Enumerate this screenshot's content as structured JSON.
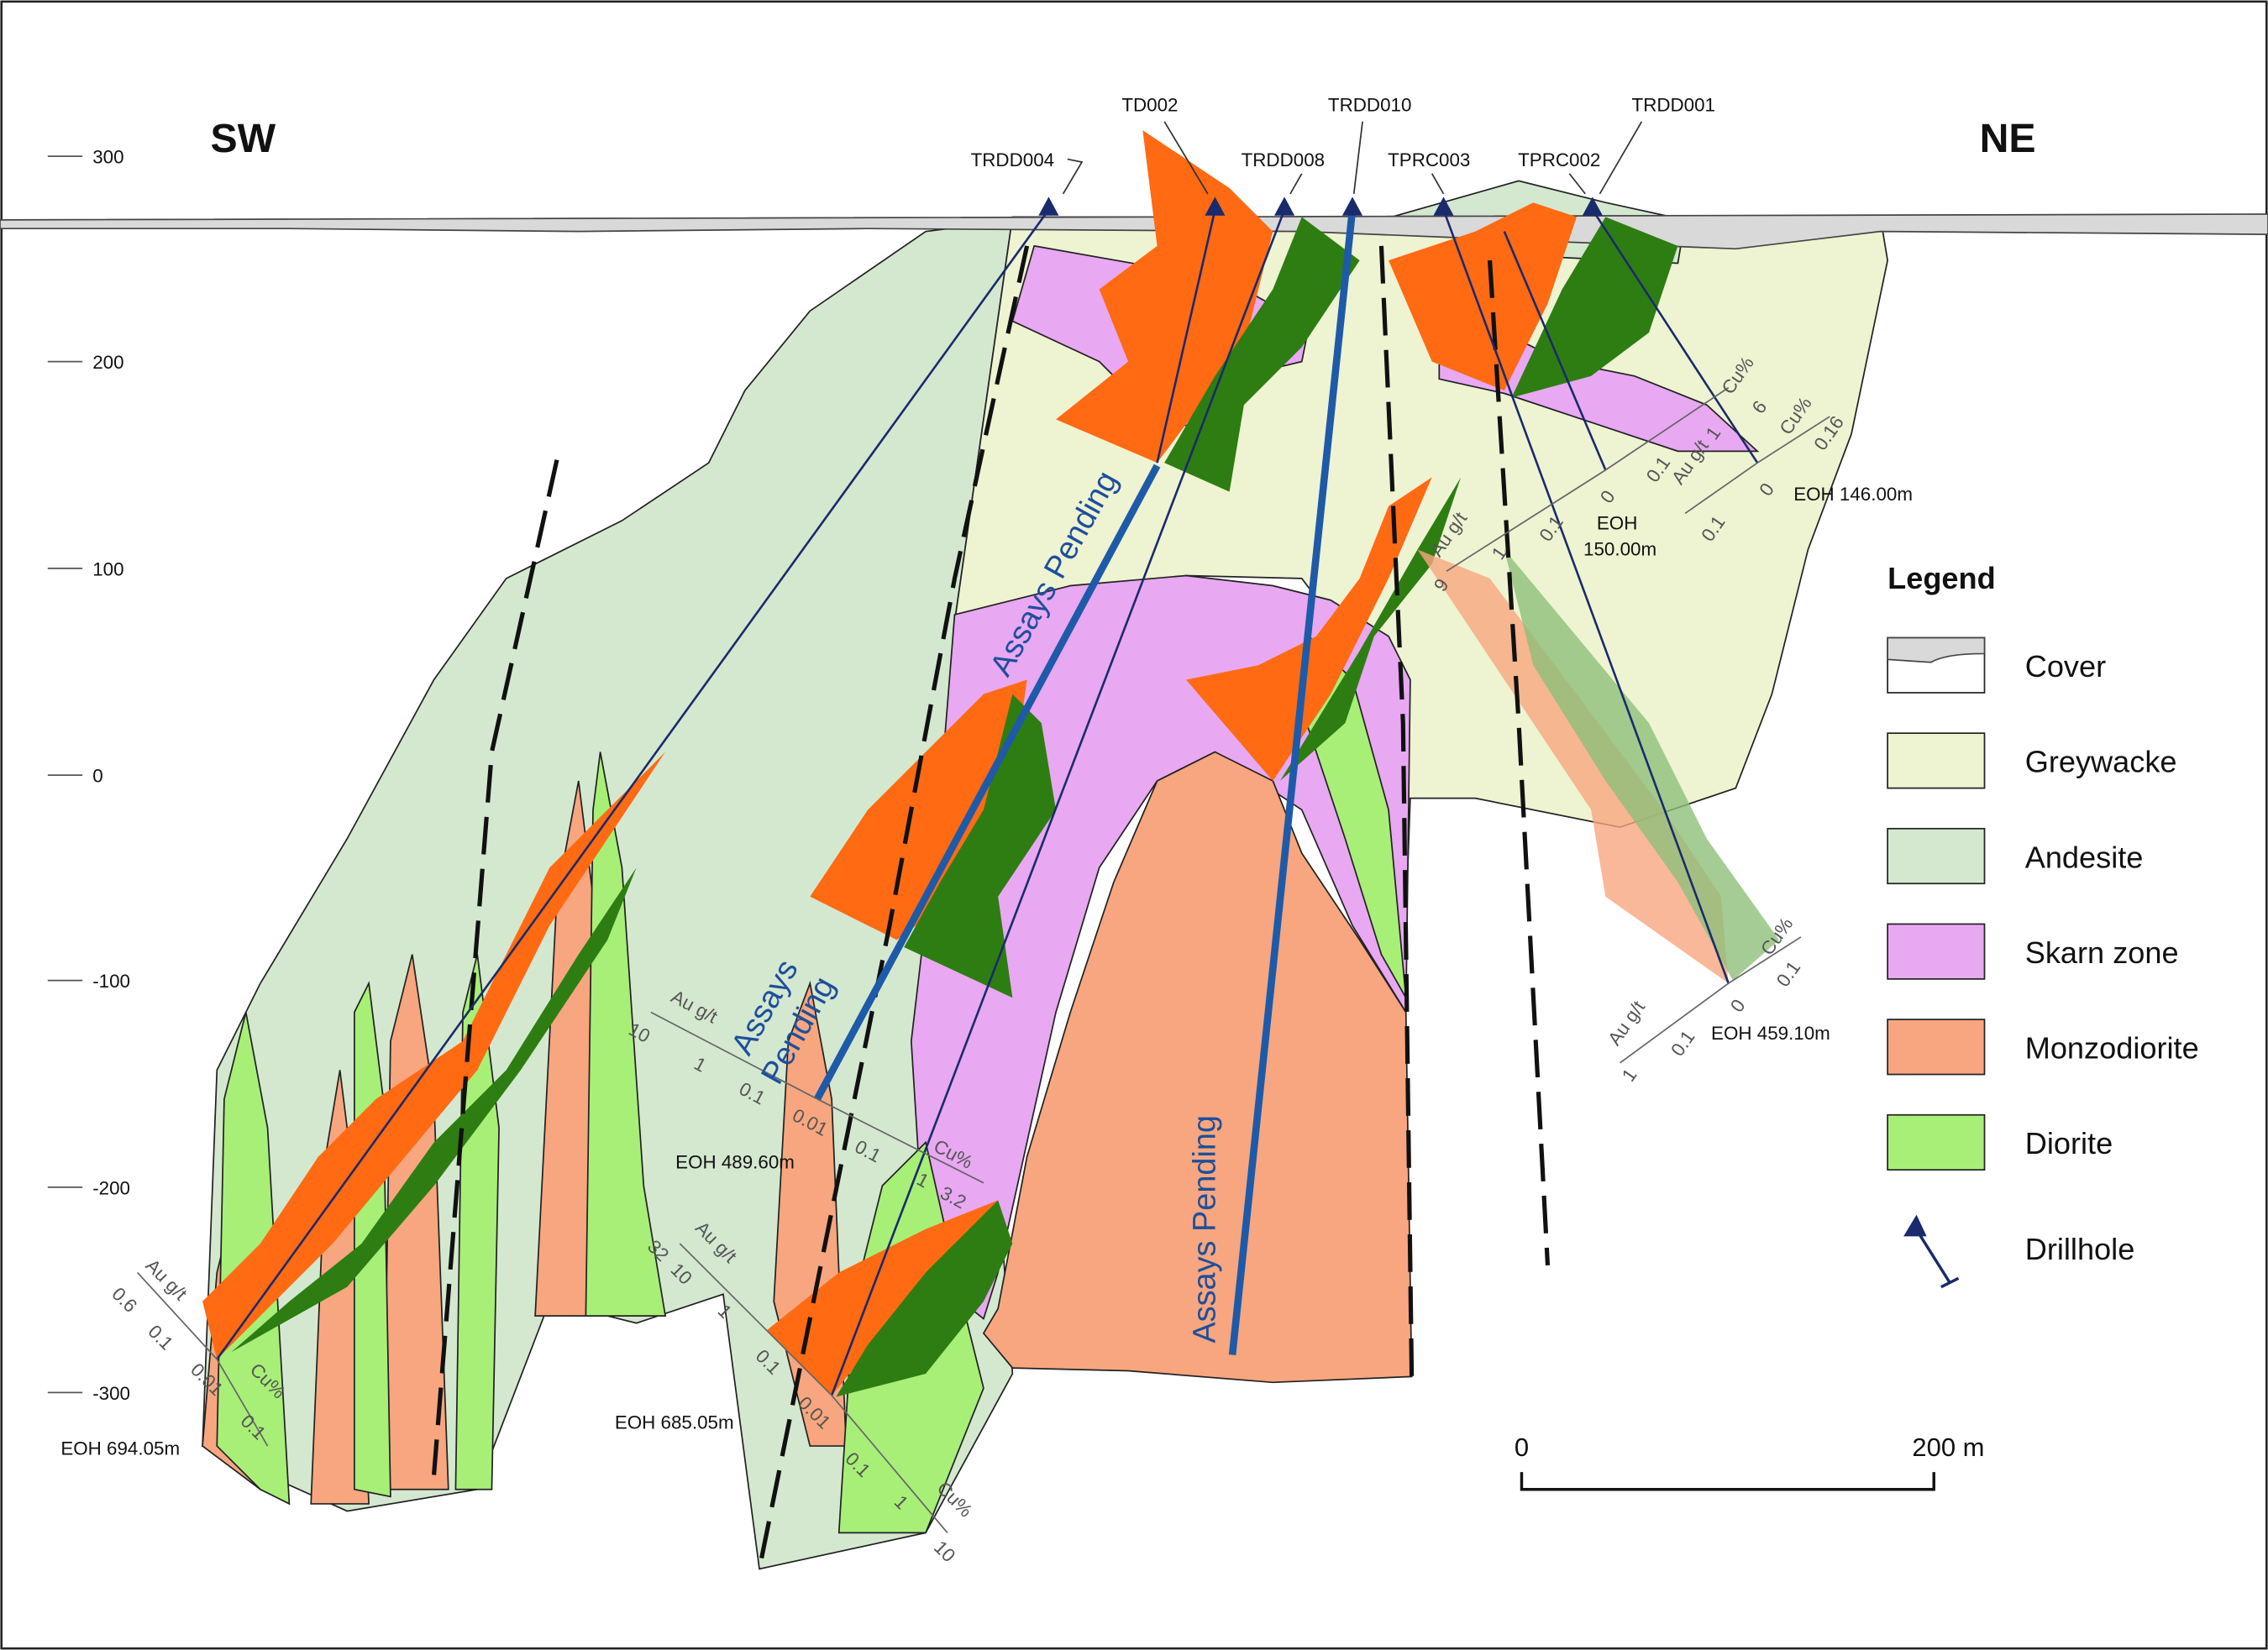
{
  "header": {
    "left": "SW",
    "right": "NE"
  },
  "elevation_labels": [
    300,
    200,
    100,
    0,
    -100,
    -200,
    -300
  ],
  "drillholes": [
    "TRDD004",
    "TD002",
    "TRDD008",
    "TRDD010",
    "TPRC003",
    "TPRC002",
    "TRDD001"
  ],
  "annotations": {
    "pending_1": "Assays Pending",
    "pending_2_line1": "Assays",
    "pending_2_line2": "Pending",
    "pending_3": "Assays Pending"
  },
  "end_of_hole": [
    "EOH 694.05m",
    "EOH 489.60m",
    "EOH 685.05m",
    "EOH",
    "150.00m",
    "EOH 146.00m",
    "EOH 459.10m"
  ],
  "assay_axes": [
    {
      "au": "Au g/t",
      "au_ticks": [
        "0.6",
        "0.1",
        "0.01"
      ],
      "cu": "Cu%",
      "cu_ticks": [
        "0.1"
      ]
    },
    {
      "au": "Au g/t",
      "au_ticks": [
        "10",
        "1",
        "0.1",
        "0.01"
      ],
      "cu": "Cu%",
      "cu_ticks": [
        "0.1",
        "1",
        "3.2"
      ]
    },
    {
      "au": "Au g/t",
      "au_ticks": [
        "32",
        "10",
        "1",
        "0.1",
        "0.01"
      ],
      "cu": "Cu%",
      "cu_ticks": [
        "0.1",
        "1",
        "10"
      ]
    },
    {
      "au": "Au g/t",
      "au_ticks": [
        "9",
        "1",
        "0.1",
        "0"
      ],
      "cu": "Cu%",
      "cu_ticks": [
        "0.1",
        "1",
        "6"
      ]
    },
    {
      "au": "Au g/t",
      "au_ticks": [
        "0.1",
        "0"
      ],
      "cu": "Cu%",
      "cu_ticks": [
        "0.16"
      ]
    },
    {
      "au": "Au g/t",
      "au_ticks": [
        "1",
        "0.1",
        "0"
      ],
      "cu": "Cu%",
      "cu_ticks": [
        "0.1"
      ]
    }
  ],
  "legend": {
    "title": "Legend",
    "items": [
      "Cover",
      "Greywacke",
      "Andesite",
      "Skarn zone",
      "Monzodiorite",
      "Diorite",
      "Drillhole"
    ]
  },
  "scale_bar": {
    "start": "0",
    "end": "200 m"
  }
}
